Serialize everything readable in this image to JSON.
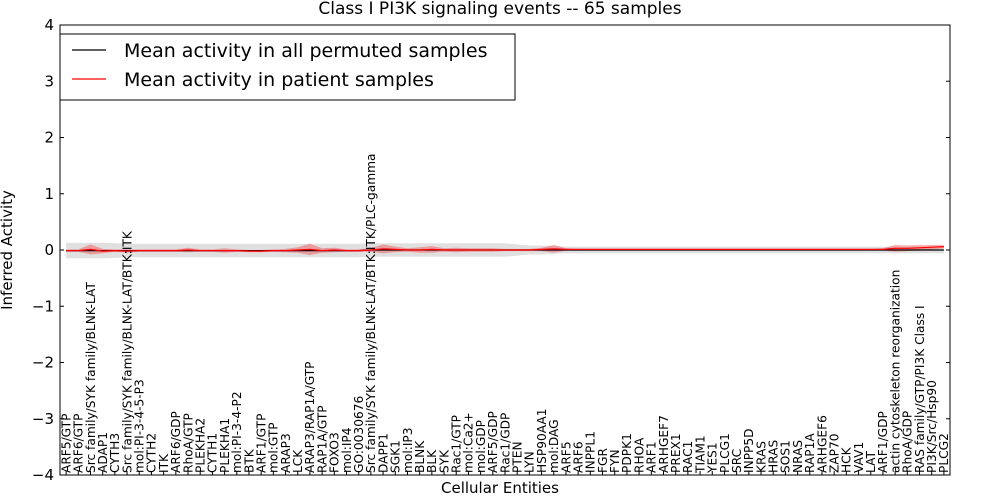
{
  "chart_data": {
    "type": "line",
    "title": "Class I PI3K signaling events -- 65 samples",
    "xlabel": "Cellular Entities",
    "ylabel": "Inferred Activity",
    "ylim": [
      -4,
      4
    ],
    "yticks": [
      -4,
      -3,
      -2,
      -1,
      0,
      1,
      2,
      3,
      4
    ],
    "ytick_labels": [
      "−4",
      "−3",
      "−2",
      "−1",
      "0",
      "1",
      "2",
      "3",
      "4"
    ],
    "legend_position": "top-left",
    "categories": [
      "ARF5/GTP",
      "ARF6/GTP",
      "Src family/SYK family/BLNK-LAT",
      "ADAP1",
      "CYTH3",
      "Src family/SYK family/BLNK-LAT/BTK:ITK",
      "mol:PI-3-4-5-P3",
      "CYTH2",
      "ITK",
      "ARF6/GDP",
      "RhoA/GTP",
      "PLEKHA2",
      "CYTH1",
      "PLEKHA1",
      "mol:PI-3-4-P2",
      "BTK",
      "ARF1/GTP",
      "mol:GTP",
      "ARAP3",
      "LCK",
      "ARAP3/RAP1A/GTP",
      "RAP1A/GTP",
      "FOXO3",
      "mol:IP4",
      "GO:0030676",
      "Src family/SYK family/BLNK-LAT/BTK:ITK/PLC-gamma",
      "DAPP1",
      "SGK1",
      "mol:IP3",
      "BLNK",
      "BLK",
      "SYK",
      "Rac1/GTP",
      "mol:Ca2+",
      "mol:GDP",
      "ARF5/GDP",
      "Rac1/GDP",
      "PTEN",
      "LYN",
      "HSP90AA1",
      "mol:DAG",
      "ARF5",
      "ARF6",
      "INPPL1",
      "FGR",
      "FYN",
      "PDPK1",
      "RHOA",
      "ARF1",
      "ARHGEF7",
      "PREX1",
      "RAC1",
      "TIAM1",
      "YES1",
      "PLCG1",
      "SRC",
      "INPP5D",
      "KRAS",
      "HRAS",
      "SOS1",
      "NRAS",
      "RAP1A",
      "ARHGEF6",
      "ZAP70",
      "HCK",
      "VAV1",
      "LAT",
      "ARF1/GDP",
      "actin cytoskeleton reorganization",
      "RhoA/GDP",
      "RAS family/GTP/PI3K Class I",
      "PI3K/Src/Hsp90",
      "PLCG2"
    ],
    "series": [
      {
        "name": "Mean activity in all permuted samples",
        "color": "#000000",
        "values": [
          -0.01,
          -0.01,
          -0.01,
          -0.01,
          -0.01,
          -0.01,
          -0.01,
          -0.01,
          -0.01,
          -0.01,
          -0.01,
          -0.01,
          -0.01,
          -0.01,
          -0.01,
          -0.01,
          -0.01,
          -0.01,
          -0.01,
          -0.01,
          -0.01,
          -0.01,
          -0.01,
          -0.01,
          -0.01,
          0.0,
          0.0,
          0.0,
          0.0,
          0.0,
          0.0,
          0.0,
          0.0,
          0.0,
          0.0,
          0.0,
          0.0,
          0.0,
          0.0,
          0.0,
          0.0,
          0.0,
          0.0,
          0.0,
          0.0,
          0.0,
          0.0,
          0.0,
          0.0,
          0.0,
          0.0,
          0.0,
          0.0,
          0.0,
          0.0,
          0.0,
          0.0,
          0.0,
          0.0,
          0.0,
          0.0,
          0.0,
          0.0,
          0.0,
          0.0,
          0.0,
          0.0,
          0.0,
          0.0,
          0.0,
          0.0,
          0.0,
          0.0
        ],
        "band": [
          0.14,
          0.14,
          0.14,
          0.14,
          0.13,
          0.12,
          0.12,
          0.12,
          0.12,
          0.12,
          0.12,
          0.12,
          0.12,
          0.12,
          0.12,
          0.12,
          0.12,
          0.12,
          0.12,
          0.12,
          0.12,
          0.12,
          0.12,
          0.12,
          0.12,
          0.12,
          0.12,
          0.12,
          0.12,
          0.12,
          0.12,
          0.12,
          0.12,
          0.12,
          0.12,
          0.12,
          0.12,
          0.1,
          0.08,
          0.08,
          0.07,
          0.06,
          0.06,
          0.06,
          0.06,
          0.06,
          0.06,
          0.06,
          0.06,
          0.06,
          0.06,
          0.06,
          0.06,
          0.06,
          0.06,
          0.06,
          0.06,
          0.06,
          0.06,
          0.06,
          0.06,
          0.06,
          0.06,
          0.06,
          0.06,
          0.06,
          0.06,
          0.06,
          0.06,
          0.06,
          0.06,
          0.06,
          0.06
        ]
      },
      {
        "name": "Mean activity in patient samples",
        "color": "#ff0000",
        "values": [
          -0.01,
          -0.01,
          0.01,
          -0.02,
          -0.01,
          -0.02,
          -0.01,
          -0.01,
          -0.01,
          -0.01,
          0.0,
          -0.01,
          -0.01,
          -0.01,
          -0.01,
          -0.02,
          -0.02,
          -0.01,
          -0.01,
          0.0,
          0.01,
          -0.01,
          0.0,
          -0.01,
          -0.01,
          0.0,
          0.02,
          0.01,
          0.0,
          0.0,
          0.01,
          0.0,
          0.0,
          0.0,
          0.0,
          0.0,
          0.0,
          0.0,
          0.0,
          0.01,
          0.02,
          0.01,
          0.01,
          0.01,
          0.01,
          0.01,
          0.01,
          0.01,
          0.01,
          0.01,
          0.01,
          0.01,
          0.01,
          0.01,
          0.01,
          0.01,
          0.01,
          0.01,
          0.01,
          0.01,
          0.01,
          0.01,
          0.01,
          0.01,
          0.01,
          0.01,
          0.01,
          0.01,
          0.03,
          0.03,
          0.04,
          0.05,
          0.06
        ],
        "band": [
          0.02,
          0.02,
          0.09,
          0.04,
          0.02,
          0.03,
          0.02,
          0.02,
          0.02,
          0.02,
          0.04,
          0.02,
          0.02,
          0.04,
          0.02,
          0.02,
          0.02,
          0.02,
          0.03,
          0.05,
          0.1,
          0.04,
          0.04,
          0.02,
          0.02,
          0.03,
          0.08,
          0.05,
          0.03,
          0.05,
          0.06,
          0.03,
          0.04,
          0.03,
          0.03,
          0.03,
          0.02,
          0.02,
          0.02,
          0.03,
          0.07,
          0.02,
          0.01,
          0.01,
          0.01,
          0.01,
          0.01,
          0.01,
          0.01,
          0.01,
          0.01,
          0.01,
          0.01,
          0.01,
          0.01,
          0.01,
          0.01,
          0.01,
          0.01,
          0.01,
          0.01,
          0.01,
          0.01,
          0.01,
          0.01,
          0.01,
          0.01,
          0.02,
          0.06,
          0.05,
          0.05,
          0.04,
          0.03
        ]
      }
    ]
  }
}
